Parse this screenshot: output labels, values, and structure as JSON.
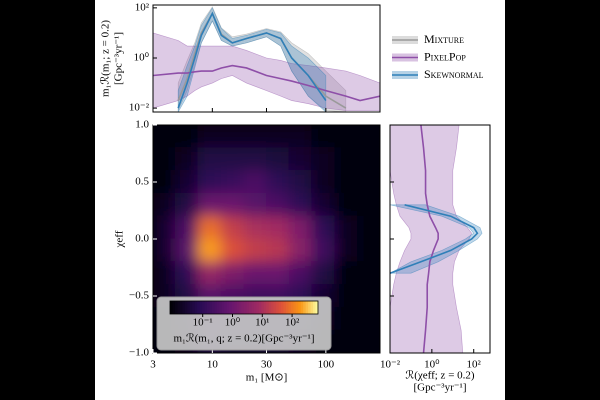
{
  "chart_data": [
    {
      "type": "line",
      "log_x": true,
      "log_y": true,
      "ylabel": [
        "m₁ℛ(m₁; z = 0.2)",
        "[Gpc⁻³yr⁻¹]"
      ],
      "x": [
        3,
        5,
        6,
        7,
        8,
        10,
        12,
        15,
        20,
        30,
        40,
        50,
        70,
        100,
        150,
        200,
        300
      ],
      "xlim": [
        3,
        300
      ],
      "ylim": [
        0.007,
        130
      ],
      "yticks": [
        {
          "value": 0.01,
          "label": "10⁻²"
        },
        {
          "value": 1,
          "label": "10⁰"
        },
        {
          "value": 100,
          "label": "10²"
        }
      ],
      "series": [
        {
          "name": "Mixture",
          "color": "#9a9a9a",
          "values": [
            null,
            0.02,
            0.15,
            1.5,
            10,
            60,
            9,
            4,
            6,
            10,
            6,
            1,
            0.2,
            0.03,
            0.01,
            null,
            null
          ],
          "lower": [
            null,
            0.008,
            0.05,
            0.5,
            4,
            30,
            5,
            3,
            4,
            7,
            3,
            0.3,
            0.03,
            0.008,
            0.007,
            null,
            null
          ],
          "upper": [
            null,
            0.1,
            0.8,
            4,
            25,
            110,
            16,
            7,
            9,
            15,
            11,
            4,
            1.5,
            0.3,
            0.05,
            null,
            null
          ]
        },
        {
          "name": "PixelPop",
          "color": "#8e4fa8",
          "values": [
            0.2,
            0.25,
            0.25,
            0.28,
            0.3,
            0.3,
            0.4,
            0.5,
            0.4,
            0.2,
            0.15,
            0.12,
            0.08,
            0.05,
            0.03,
            0.02,
            0.03
          ],
          "lower": [
            0.01,
            0.02,
            0.03,
            0.05,
            0.07,
            0.1,
            0.15,
            0.2,
            0.1,
            0.05,
            0.03,
            0.02,
            0.015,
            0.01,
            0.008,
            0.008,
            0.008
          ],
          "upper": [
            10,
            5,
            3,
            3,
            3,
            3,
            3,
            3,
            2,
            1,
            0.8,
            0.6,
            0.5,
            0.4,
            0.3,
            0.2,
            0.1
          ]
        },
        {
          "name": "Skewnormal",
          "color": "#2f7fb8",
          "values": [
            null,
            0.01,
            0.1,
            1,
            8,
            60,
            8,
            4,
            6,
            10,
            6,
            1,
            0.2,
            0.02,
            null,
            null,
            null
          ],
          "lower": [
            null,
            0.007,
            0.03,
            0.4,
            4,
            30,
            5,
            3,
            4,
            7,
            3,
            0.3,
            0.03,
            0.007,
            null,
            null,
            null
          ],
          "upper": [
            null,
            0.05,
            0.5,
            3,
            20,
            100,
            15,
            6,
            8,
            14,
            10,
            3,
            1,
            0.2,
            null,
            null,
            null
          ]
        }
      ]
    },
    {
      "type": "heatmap",
      "log_x": true,
      "xlabel": "m₁ [M⊙]",
      "ylabel": "χeff",
      "xlim": [
        3,
        300
      ],
      "ylim": [
        -1,
        1
      ],
      "xticks": [
        3,
        10,
        30,
        100
      ],
      "yticks": [
        {
          "value": -1,
          "label": "−1.0"
        },
        {
          "value": -0.5,
          "label": "−0.5"
        },
        {
          "value": 0,
          "label": "0.0"
        },
        {
          "value": 0.5,
          "label": "0.5"
        },
        {
          "value": 1,
          "label": "1.0"
        }
      ],
      "x_edges": [
        3,
        4.75,
        7.5,
        12,
        19,
        30,
        47.5,
        75,
        120,
        190,
        300
      ],
      "y_edges": [
        1,
        0.8,
        0.6,
        0.4,
        0.2,
        0,
        -0.2,
        -0.4,
        -0.6,
        -0.8,
        -1
      ],
      "values": [
        [
          0.01,
          0.01,
          0.02,
          0.02,
          0.02,
          0.02,
          0.02,
          0.01,
          0.01,
          0.01
        ],
        [
          0.01,
          0.02,
          0.05,
          0.05,
          0.05,
          0.04,
          0.03,
          0.02,
          0.01,
          0.01
        ],
        [
          0.01,
          0.03,
          0.1,
          0.15,
          0.3,
          0.1,
          0.05,
          0.02,
          0.01,
          0.01
        ],
        [
          0.02,
          0.05,
          1,
          1,
          0.5,
          0.3,
          0.1,
          0.03,
          0.01,
          0.01
        ],
        [
          0.03,
          0.3,
          80,
          20,
          10,
          8,
          2,
          0.1,
          0.02,
          0.01
        ],
        [
          0.03,
          0.5,
          200,
          40,
          20,
          15,
          3,
          0.2,
          0.02,
          0.01
        ],
        [
          0.02,
          0.1,
          5,
          2,
          1,
          1,
          0.3,
          0.05,
          0.01,
          0.01
        ],
        [
          0.02,
          0.05,
          0.5,
          0.3,
          0.2,
          0.2,
          0.1,
          0.03,
          0.01,
          0.01
        ],
        [
          0.01,
          0.03,
          0.2,
          0.1,
          0.1,
          0.1,
          0.05,
          0.02,
          0.01,
          0.01
        ],
        [
          0.01,
          0.02,
          0.1,
          0.05,
          0.05,
          0.05,
          0.03,
          0.01,
          0.01,
          0.01
        ]
      ],
      "colorbar": {
        "clim": [
          0.008,
          740
        ],
        "label": "m₁ℛ(m₁, q; z = 0.2)[Gpc⁻³yr⁻¹]",
        "ticks": [
          {
            "value": 0.1,
            "label": "10⁻¹"
          },
          {
            "value": 1,
            "label": "10⁰"
          },
          {
            "value": 10,
            "label": "10¹"
          },
          {
            "value": 100,
            "label": "10²"
          }
        ]
      }
    },
    {
      "type": "line",
      "orientation": "horizontal",
      "log_x": true,
      "xlabel": [
        "ℛ(χeff; z = 0.2)",
        "[Gpc⁻³yr⁻¹]"
      ],
      "y": [
        -1,
        -0.8,
        -0.6,
        -0.4,
        -0.3,
        -0.2,
        -0.1,
        0,
        0.05,
        0.1,
        0.2,
        0.3,
        0.4,
        0.6,
        0.8,
        1
      ],
      "xlim": [
        0.01,
        600
      ],
      "ylim": [
        -1,
        1
      ],
      "xticks": [
        {
          "value": 0.01,
          "label": "10⁻²"
        },
        {
          "value": 1,
          "label": "10⁰"
        },
        {
          "value": 100,
          "label": "10²"
        }
      ],
      "series": [
        {
          "color": "#8e4fa8",
          "values": [
            0.4,
            0.5,
            0.6,
            0.6,
            0.7,
            0.8,
            1.2,
            2,
            2,
            1.5,
            0.8,
            0.6,
            0.5,
            0.5,
            0.4,
            0.3
          ],
          "lower": [
            0.01,
            0.01,
            0.01,
            0.015,
            0.02,
            0.03,
            0.05,
            0.1,
            0.1,
            0.08,
            0.03,
            0.02,
            0.015,
            0.01,
            0.01,
            0.01
          ],
          "upper": [
            30,
            25,
            15,
            10,
            10,
            12,
            20,
            60,
            80,
            50,
            15,
            10,
            10,
            10,
            15,
            20
          ]
        },
        {
          "color": "#2f7fb8",
          "values": [
            null,
            null,
            null,
            null,
            0.01,
            0.3,
            8,
            80,
            150,
            100,
            8,
            0.05,
            null,
            null,
            null,
            null
          ],
          "lower": [
            null,
            null,
            null,
            null,
            0.01,
            0.1,
            3,
            40,
            100,
            60,
            3,
            0.01,
            null,
            null,
            null,
            null
          ],
          "upper": [
            null,
            null,
            null,
            null,
            0.1,
            2,
            20,
            150,
            250,
            200,
            20,
            0.5,
            null,
            null,
            null,
            null
          ]
        }
      ]
    }
  ]
}
